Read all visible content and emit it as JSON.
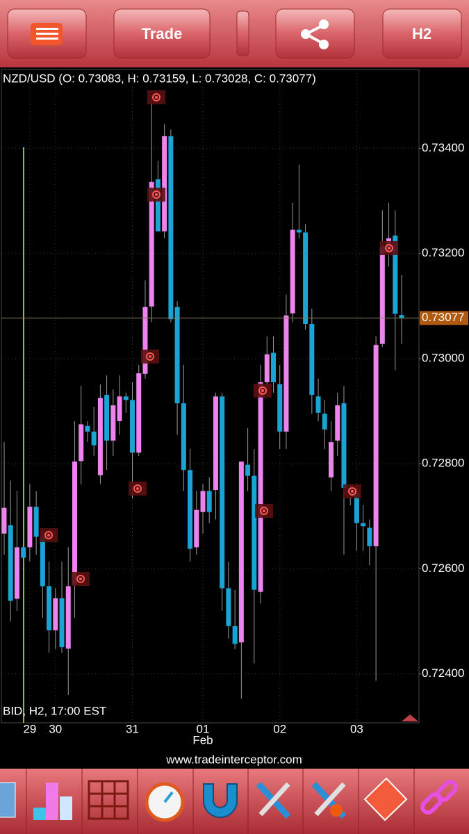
{
  "toolbar": {
    "trade_button": "Trade",
    "timeframe_button": "H2"
  },
  "chart_data": {
    "type": "candlestick",
    "title": "NZD/USD (O: 0.73083, H: 0.73159, L: 0.73028, C: 0.73077)",
    "footer_label": "BID, H2, 17:00 EST",
    "categories": [
      null,
      null,
      null,
      null,
      "29",
      null,
      null,
      null,
      "30",
      null,
      null,
      null,
      null,
      null,
      null,
      null,
      null,
      null,
      null,
      null,
      "31",
      null,
      null,
      null,
      null,
      null,
      null,
      null,
      null,
      null,
      null,
      "01",
      null,
      null,
      null,
      null,
      null,
      null,
      null,
      null,
      null,
      null,
      null,
      "02",
      null,
      null,
      null,
      null,
      null,
      null,
      null,
      null,
      null,
      null,
      null,
      "03",
      null,
      null,
      null,
      null,
      null,
      null,
      null
    ],
    "month_label": "Feb",
    "open": [
      0.72667,
      0.72683,
      0.72543,
      0.72641,
      0.72641,
      0.72718,
      0.72661,
      0.72567,
      0.72483,
      0.72544,
      0.72448,
      0.7257,
      0.72805,
      0.72872,
      0.72861,
      0.72778,
      0.72931,
      0.72844,
      0.72881,
      0.72928,
      0.72921,
      0.72821,
      0.72971,
      0.73099,
      0.73341,
      0.73242,
      0.73423,
      0.73098,
      0.72915,
      0.72788,
      0.72641,
      0.72708,
      0.72748,
      0.7275,
      0.72928,
      0.72563,
      0.72491,
      0.7246,
      0.72798,
      0.72777,
      0.72556,
      0.72955,
      0.73011,
      0.72951,
      0.72861,
      0.73086,
      0.73245,
      0.7324,
      0.73066,
      0.72928,
      0.72895,
      0.72774,
      0.72844,
      0.72915,
      0.72754,
      0.72745,
      0.72687,
      0.72678,
      0.72643,
      0.73028,
      0.73202,
      0.73234,
      0.73083
    ],
    "high": [
      0.72841,
      0.72768,
      0.72748,
      0.72667,
      0.72761,
      0.72748,
      0.72674,
      0.72614,
      0.72563,
      0.72614,
      0.72641,
      0.72881,
      0.72948,
      0.72881,
      0.72908,
      0.72951,
      0.72968,
      0.72941,
      0.72968,
      0.72935,
      0.72955,
      0.72988,
      0.73149,
      0.73496,
      0.73376,
      0.73446,
      0.73436,
      0.73109,
      0.72988,
      0.72828,
      0.72748,
      0.72761,
      0.72774,
      0.72935,
      0.72935,
      0.72614,
      0.7256,
      0.72804,
      0.72868,
      0.72828,
      0.72988,
      0.73042,
      0.73042,
      0.72988,
      0.73122,
      0.73296,
      0.73369,
      0.73256,
      0.73095,
      0.72962,
      0.72921,
      0.72881,
      0.72935,
      0.72948,
      0.72761,
      0.72761,
      0.72721,
      0.72694,
      0.73042,
      0.73282,
      0.73296,
      0.73282,
      0.73159
    ],
    "low": [
      0.72627,
      0.725,
      0.7252,
      0.72601,
      0.72614,
      0.72627,
      0.72507,
      0.7244,
      0.72447,
      0.7244,
      0.7236,
      0.72507,
      0.72761,
      0.72841,
      0.72815,
      0.72761,
      0.72788,
      0.72815,
      0.72855,
      0.72897,
      0.72734,
      0.72815,
      0.72962,
      0.73069,
      0.73242,
      0.73229,
      0.73069,
      0.72855,
      0.72748,
      0.72614,
      0.72627,
      0.72667,
      0.72687,
      0.72694,
      0.7252,
      0.72467,
      0.72447,
      0.72353,
      0.72748,
      0.7242,
      0.72534,
      0.72935,
      0.72935,
      0.72828,
      0.72828,
      0.73069,
      0.73229,
      0.73055,
      0.72895,
      0.72881,
      0.72828,
      0.72748,
      0.72815,
      0.72627,
      0.72721,
      0.72634,
      0.72634,
      0.72607,
      0.72387,
      0.73022,
      0.73175,
      0.72978,
      0.73028
    ],
    "close": [
      0.72716,
      0.72539,
      0.72641,
      0.72621,
      0.72718,
      0.72661,
      0.72567,
      0.72483,
      0.72544,
      0.72451,
      0.72567,
      0.72804,
      0.72875,
      0.72861,
      0.72835,
      0.72925,
      0.72844,
      0.72911,
      0.72928,
      0.72921,
      0.72821,
      0.72972,
      0.73098,
      0.73336,
      0.73242,
      0.73423,
      0.73075,
      0.72915,
      0.72788,
      0.72638,
      0.72712,
      0.72748,
      0.72708,
      0.72928,
      0.72563,
      0.72491,
      0.72457,
      0.72804,
      0.72777,
      0.7256,
      0.72955,
      0.73008,
      0.72955,
      0.72861,
      0.73082,
      0.73245,
      0.7324,
      0.73066,
      0.72931,
      0.72897,
      0.72865,
      0.72841,
      0.72911,
      0.72754,
      0.72745,
      0.72687,
      0.72681,
      0.72643,
      0.73026,
      0.73213,
      0.73229,
      0.73085,
      0.73077
    ],
    "up_color": "#ee82ee",
    "down_color": "#1aa3d3",
    "ylim": [
      0.72307,
      0.7355
    ],
    "yticks": [
      {
        "value": 0.724,
        "label": "0.72400"
      },
      {
        "value": 0.726,
        "label": "0.72600"
      },
      {
        "value": 0.728,
        "label": "0.72800"
      },
      {
        "value": 0.73,
        "label": "0.73000"
      },
      {
        "value": 0.732,
        "label": "0.73200"
      },
      {
        "value": 0.734,
        "label": "0.73400"
      }
    ],
    "current_price": {
      "value": 0.73077,
      "label": "0.73077"
    },
    "grid": true
  },
  "watermark": "www.tradeinterceptor.com"
}
